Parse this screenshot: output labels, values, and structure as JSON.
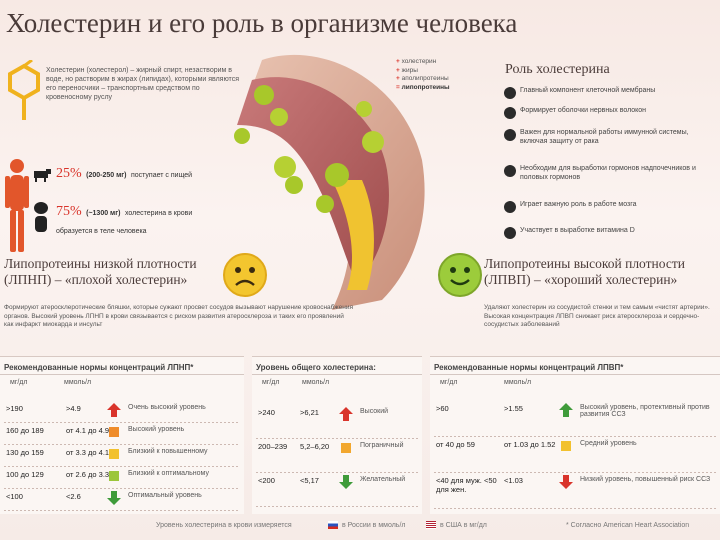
{
  "title": "Холестерин и его роль в организме человека",
  "intro": {
    "text": "Холестерин (холестерол) – жирный спирт, незастворим в воде, но растворим в жирах (липидах), которыми являются его переносчики – транспортным средством по кровеносному руслу"
  },
  "sources": [
    {
      "percent": "25%",
      "amount": "(200-250 мг)",
      "text": "поступает с пищей"
    },
    {
      "percent": "75%",
      "amount": "(~1300 мг)",
      "text": "холестерина в крови образуется в теле человека"
    }
  ],
  "legend": {
    "items": [
      "холестерин",
      "жиры",
      "аполипротеины"
    ],
    "result": "липопротеины"
  },
  "role": {
    "title": "Роль холестерина",
    "items": [
      {
        "icon": "cell-icon",
        "text": "Главный компонент клеточной мембраны"
      },
      {
        "icon": "nerve-icon",
        "text": "Формирует оболочки нервных волокон"
      },
      {
        "icon": "shield-icon",
        "text": "Важен для нормальной работы иммунной системы, включая защиту от рака"
      },
      {
        "icon": "gland-icon",
        "text": "Необходим для выработки гормонов надпочечников и половых гормонов"
      },
      {
        "icon": "brain-icon",
        "text": "Играет важную роль в работе мозга"
      },
      {
        "icon": "vitamin-d-icon",
        "text": "Участвует в выработке витамина D"
      }
    ]
  },
  "ldl": {
    "heading_line1": "Липопротеины низкой плотности",
    "heading_line2": "(ЛПНП) – «плохой холестерин»",
    "text": "Формируют атеросклеротические бляшки, которые сужают просвет сосудов вызывают нарушение кровоснабжения органов. Высокий уровень ЛПНП в крови связывается с риском развития атеросклероза и таких его проявлений как инфаркт миокарда и инсульт"
  },
  "hdl": {
    "heading_line1": "Липопротеины высокой плотности",
    "heading_line2": "(ЛПВП) – «хороший холестерин»",
    "text": "Удаляют холестерин из сосудистой стенки и тем самым «чистят артерии». Высокая концентрация ЛПВП снижает риск атеросклероза и сердечно-сосудистых заболеваний"
  },
  "colors": {
    "red": "#d9342b",
    "orange": "#ef8c2a",
    "yellow": "#f2c12e",
    "green_light": "#9cc63b",
    "green": "#3f9b3a"
  },
  "table_ldl": {
    "title": "Рекомендованные нормы концентраций ЛПНП*",
    "col1": "мг/дл",
    "col2": "ммоль/л",
    "rows": [
      {
        "mg": ">190",
        "mmol": ">4.9",
        "arrow": "up",
        "color": "#d9342b",
        "label": "Очень высокий уровень"
      },
      {
        "mg": "160 до 189",
        "mmol": "от 4.1 до 4.9",
        "arrow": "box",
        "color": "#ef8c2a",
        "label": "Высокий уровень"
      },
      {
        "mg": "130 до 159",
        "mmol": "от 3.3 до 4.1",
        "arrow": "box",
        "color": "#f2c12e",
        "label": "Близкий к повышенному"
      },
      {
        "mg": "100 до 129",
        "mmol": "от 2.6 до 3.3",
        "arrow": "box",
        "color": "#9cc63b",
        "label": "Близкий к оптимальному"
      },
      {
        "mg": "<100",
        "mmol": "<2.6",
        "arrow": "down",
        "color": "#3f9b3a",
        "label": "Оптимальный уровень"
      }
    ]
  },
  "table_total": {
    "title": "Уровень общего холестерина:",
    "col1": "мг/дл",
    "col2": "ммоль/л",
    "rows": [
      {
        "mg": ">240",
        "mmol": ">6,21",
        "arrow": "up",
        "color": "#d9342b",
        "label": "Высокий"
      },
      {
        "mg": "200–239",
        "mmol": "5,2–6,20",
        "arrow": "box",
        "color": "#f2a72e",
        "label": "Пограничный"
      },
      {
        "mg": "<200",
        "mmol": "<5,17",
        "arrow": "down",
        "color": "#3f9b3a",
        "label": "Желательный"
      }
    ]
  },
  "table_hdl": {
    "title": "Рекомендованные нормы концентраций ЛПВП*",
    "col1": "мг/дл",
    "col2": "ммоль/л",
    "rows": [
      {
        "mg": ">60",
        "mmol": ">1.55",
        "arrow": "up",
        "color": "#3f9b3a",
        "label": "Высокий уровень, протективный против развития ССЗ"
      },
      {
        "mg": "от 40 до 59",
        "mmol": "от 1.03 до 1.52",
        "arrow": "box",
        "color": "#f2c12e",
        "label": "Средний уровень"
      },
      {
        "mg": "<40 для муж. <50 для жен.",
        "mmol": "<1.03",
        "arrow": "down",
        "color": "#d9342b",
        "label": "Низкий уровень, повышенный риск ССЗ"
      }
    ]
  },
  "footer": {
    "measure_text": "Уровень холестерина в крови измеряется",
    "russia_text": "в России в ммоль/л",
    "usa_text": "в США в мг/дл",
    "note": "* Согласно American Heart Association"
  }
}
